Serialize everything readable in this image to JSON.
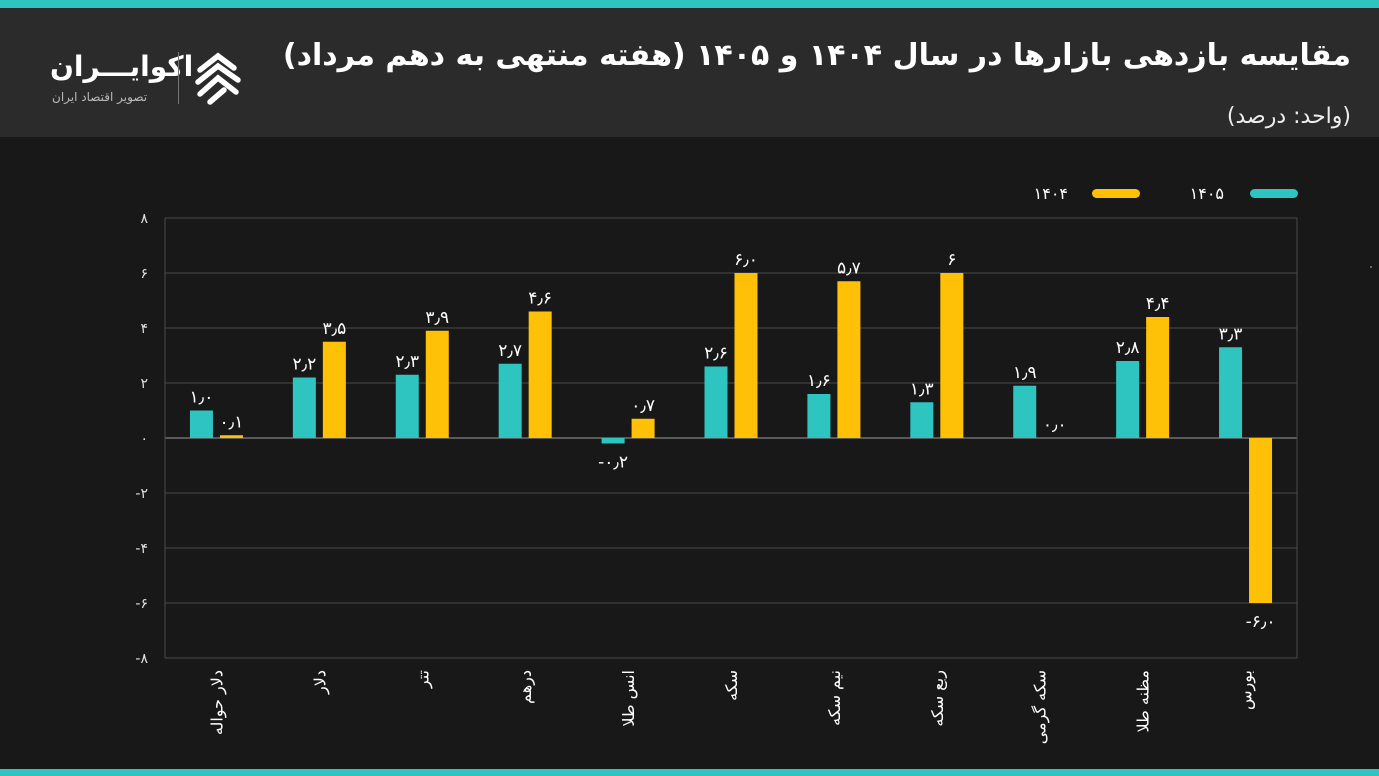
{
  "header": {
    "title": "مقایسه بازدهی بازارها در سال ۱۴۰۴ و ۱۴۰۵ (هفته منتهی به دهم مرداد)",
    "subtitle": "(واحد: درصد)"
  },
  "logo": {
    "name": "اکوایـــران",
    "tagline": "تصویر اقتصاد ایران",
    "icon": "ecoiran-logo-icon"
  },
  "colors": {
    "s1405": "#2ec4c0",
    "s1404": "#ffc107",
    "accent": "#2ec4c0",
    "background": "#181818",
    "header": "#2b2b2b"
  },
  "chart_data": {
    "type": "bar",
    "categories": [
      "دلار حواله",
      "دلار",
      "تتر",
      "درهم",
      "انس طلا",
      "سکه",
      "نیم سکه",
      "ربع سکه",
      "سکه گرمی",
      "مظنه طلا",
      "بورس"
    ],
    "series": [
      {
        "name": "۱۴۰۵",
        "values": [
          1.0,
          2.2,
          2.3,
          2.7,
          -0.2,
          2.6,
          1.6,
          1.3,
          1.9,
          2.8,
          3.3
        ],
        "labels": [
          "۱٫۰",
          "۲٫۲",
          "۲٫۳",
          "۲٫۷",
          "-۰٫۲",
          "۲٫۶",
          "۱٫۶",
          "۱٫۳",
          "۱٫۹",
          "۲٫۸",
          "۳٫۳"
        ]
      },
      {
        "name": "۱۴۰۴",
        "values": [
          0.1,
          3.5,
          3.9,
          4.6,
          0.7,
          6.0,
          5.7,
          6.0,
          0.0,
          4.4,
          -6.0
        ],
        "labels": [
          "۰٫۱",
          "۳٫۵",
          "۳٫۹",
          "۴٫۶",
          "۰٫۷",
          "۶٫۰",
          "۵٫۷",
          "۶",
          "۰٫۰",
          "۴٫۴",
          "-۶٫۰"
        ]
      }
    ],
    "ylim": [
      -8,
      8
    ],
    "yticks": [
      8,
      6,
      4,
      2,
      0,
      -2,
      -4,
      -6,
      -8
    ],
    "ytick_labels": [
      "۸",
      "۶",
      "۴",
      "۲",
      "۰",
      "-۲",
      "-۴",
      "-۶",
      "-۸"
    ],
    "legend_position": "top-right",
    "grid": true,
    "xlabel": "",
    "ylabel": ""
  }
}
